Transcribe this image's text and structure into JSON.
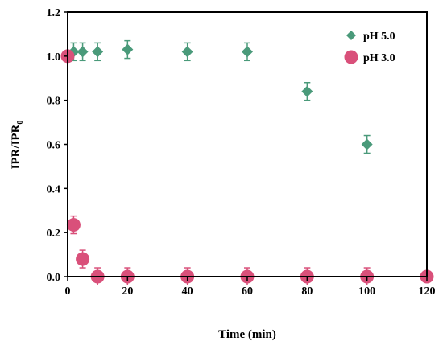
{
  "chart_data": {
    "type": "scatter",
    "xlabel": "Time (min)",
    "ylabel": {
      "main": "IPR/IPR",
      "subscript": "0"
    },
    "xlim": [
      0,
      120
    ],
    "ylim": [
      0,
      1.2
    ],
    "x_ticks": [
      "0",
      "20",
      "40",
      "60",
      "80",
      "100",
      "120"
    ],
    "y_ticks": [
      "0.0",
      "0.2",
      "0.4",
      "0.6",
      "0.8",
      "1.0",
      "1.2"
    ],
    "grid": false,
    "legend_position": "top-right",
    "series": [
      {
        "name": "pH 5.0",
        "marker": "diamond",
        "color": "#4A9A7A",
        "points": [
          {
            "x": 2,
            "y": 1.02,
            "err": 0.04
          },
          {
            "x": 5,
            "y": 1.02,
            "err": 0.04
          },
          {
            "x": 10,
            "y": 1.02,
            "err": 0.04
          },
          {
            "x": 20,
            "y": 1.03,
            "err": 0.04
          },
          {
            "x": 40,
            "y": 1.02,
            "err": 0.04
          },
          {
            "x": 60,
            "y": 1.02,
            "err": 0.04
          },
          {
            "x": 80,
            "y": 0.84,
            "err": 0.04
          },
          {
            "x": 100,
            "y": 0.6,
            "err": 0.04
          }
        ]
      },
      {
        "name": "pH 3.0",
        "marker": "circle",
        "color": "#D9507A",
        "points": [
          {
            "x": 0,
            "y": 1.0,
            "err": 0.0
          },
          {
            "x": 2,
            "y": 0.235,
            "err": 0.04
          },
          {
            "x": 5,
            "y": 0.08,
            "err": 0.04
          },
          {
            "x": 10,
            "y": 0.0,
            "err": 0.04
          },
          {
            "x": 20,
            "y": 0.0,
            "err": 0.04
          },
          {
            "x": 40,
            "y": 0.0,
            "err": 0.04
          },
          {
            "x": 60,
            "y": 0.0,
            "err": 0.04
          },
          {
            "x": 80,
            "y": 0.0,
            "err": 0.04
          },
          {
            "x": 100,
            "y": 0.0,
            "err": 0.04
          },
          {
            "x": 120,
            "y": 0.0,
            "err": 0.0
          }
        ]
      }
    ]
  }
}
